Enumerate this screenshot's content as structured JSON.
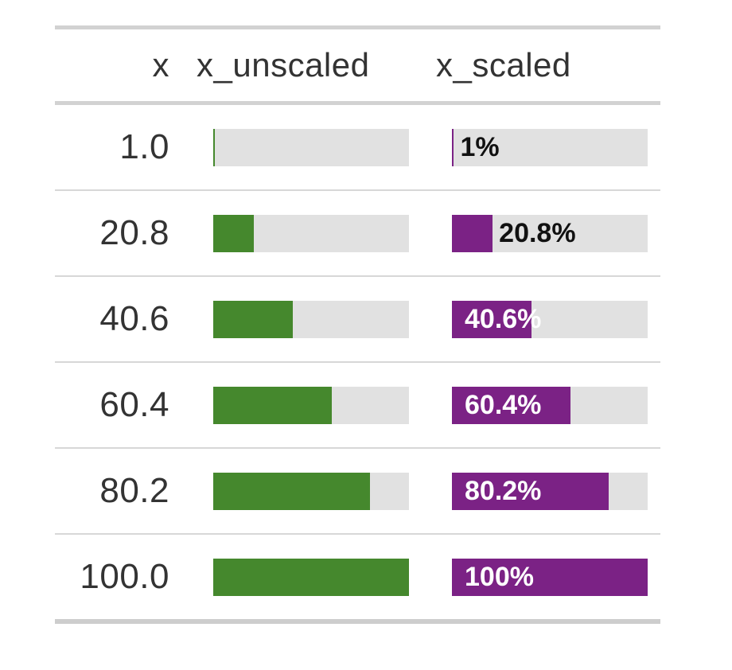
{
  "table": {
    "columns": [
      {
        "label": "x"
      },
      {
        "label": "x_unscaled"
      },
      {
        "label": "x_scaled"
      }
    ],
    "rows": [
      {
        "x": "1.0",
        "unscaled_pct": 1,
        "scaled_pct": 1,
        "scaled_label": "1%",
        "label_inside": false
      },
      {
        "x": "20.8",
        "unscaled_pct": 20.8,
        "scaled_pct": 20.8,
        "scaled_label": "20.8%",
        "label_inside": false
      },
      {
        "x": "40.6",
        "unscaled_pct": 40.6,
        "scaled_pct": 40.6,
        "scaled_label": "40.6%",
        "label_inside": true
      },
      {
        "x": "60.4",
        "unscaled_pct": 60.4,
        "scaled_pct": 60.4,
        "scaled_label": "60.4%",
        "label_inside": true
      },
      {
        "x": "80.2",
        "unscaled_pct": 80.2,
        "scaled_pct": 80.2,
        "scaled_label": "80.2%",
        "label_inside": true
      },
      {
        "x": "100.0",
        "unscaled_pct": 100,
        "scaled_pct": 100,
        "scaled_label": "100%",
        "label_inside": true
      }
    ]
  },
  "colors": {
    "unscaled_fill": "#45882d",
    "scaled_fill": "#7b2285",
    "track_background": "#e1e1e1",
    "heavy_border": "#d2d2d2",
    "row_border": "#d7d7d7",
    "text": "#333333",
    "label_outside": "#111111",
    "label_inside": "#ffffff"
  },
  "chart_data": {
    "type": "table",
    "title": "",
    "columns": [
      "x",
      "x_unscaled",
      "x_scaled"
    ],
    "x": [
      1.0,
      20.8,
      40.6,
      60.4,
      80.2,
      100.0
    ],
    "series": [
      {
        "name": "x_unscaled",
        "values": [
          1,
          20.8,
          40.6,
          60.4,
          80.2,
          100
        ],
        "unit": "percent",
        "style": "bar",
        "color": "#45882d"
      },
      {
        "name": "x_scaled",
        "values": [
          1,
          20.8,
          40.6,
          60.4,
          80.2,
          100
        ],
        "unit": "percent",
        "style": "bar",
        "color": "#7b2285",
        "labels": [
          "1%",
          "20.8%",
          "40.6%",
          "60.4%",
          "80.2%",
          "100%"
        ]
      }
    ],
    "xlim": [
      0,
      100
    ],
    "legend": false,
    "grid": false
  }
}
